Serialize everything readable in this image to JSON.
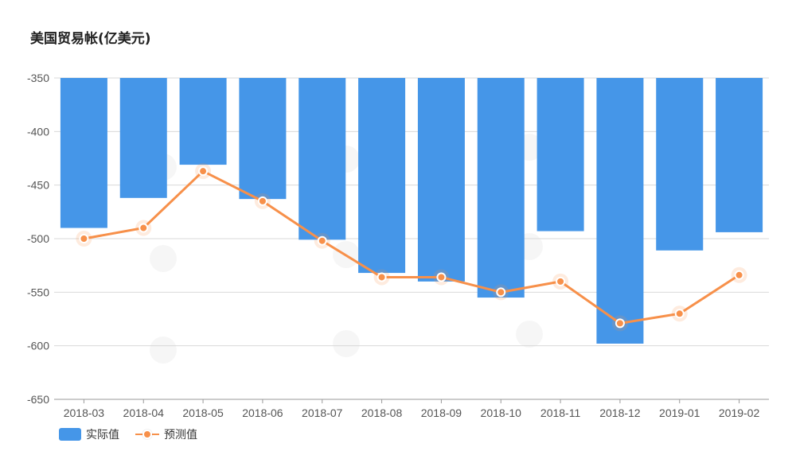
{
  "title": "美国贸易帐(亿美元)",
  "colors": {
    "bar": "#4596e8",
    "line": "#f7904a",
    "grid": "#d9d9d9",
    "axis": "#999999"
  },
  "chart_data": {
    "type": "bar",
    "title": "美国贸易帐(亿美元)",
    "categories": [
      "2018-03",
      "2018-04",
      "2018-05",
      "2018-06",
      "2018-07",
      "2018-08",
      "2018-09",
      "2018-10",
      "2018-11",
      "2018-12",
      "2019-01",
      "2019-02"
    ],
    "series": [
      {
        "name": "实际值",
        "type": "bar",
        "values": [
          -490,
          -462,
          -431,
          -463,
          -501,
          -532,
          -540,
          -555,
          -493,
          -598,
          -511,
          -494
        ]
      },
      {
        "name": "预测值",
        "type": "line",
        "values": [
          -500,
          -490,
          -437,
          -465,
          -502,
          -536,
          -536,
          -550,
          -540,
          -579,
          -570,
          -534
        ]
      }
    ],
    "yticks": [
      -350,
      -400,
      -450,
      -500,
      -550,
      -600,
      -650
    ],
    "ylim": [
      -650,
      -350
    ],
    "grid": true,
    "legend": "bottom-left"
  }
}
